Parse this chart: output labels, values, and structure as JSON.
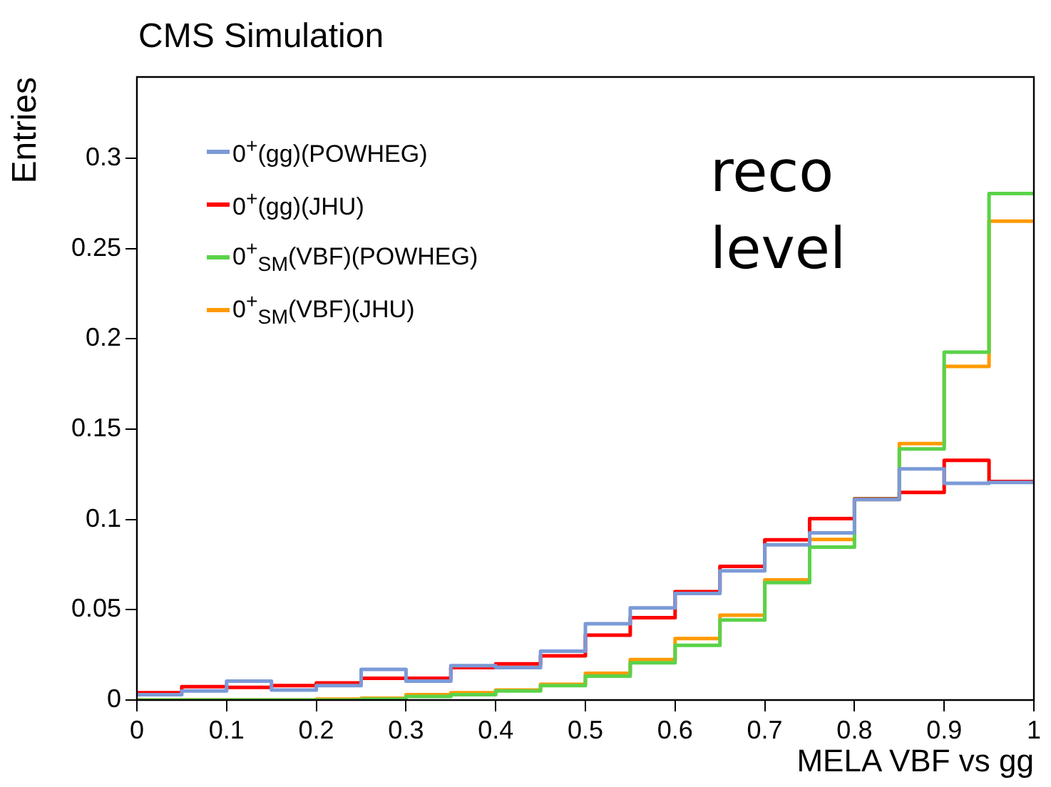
{
  "chart_data": {
    "type": "histogram",
    "title": "CMS Simulation",
    "xlabel": "MELA VBF vs gg",
    "ylabel": "Entries",
    "annotations": [
      "reco level"
    ],
    "bins": [
      0,
      0.05,
      0.1,
      0.15,
      0.2,
      0.25,
      0.3,
      0.35,
      0.4,
      0.45,
      0.5,
      0.55,
      0.6,
      0.65,
      0.7,
      0.75,
      0.8,
      0.85,
      0.9,
      0.95,
      1
    ],
    "series": [
      {
        "name": "0$^{+}$(gg)(POWHEG)",
        "color": "#7b9ad6",
        "values": [
          0.003,
          0.005,
          0.0105,
          0.0055,
          0.008,
          0.017,
          0.0105,
          0.019,
          0.018,
          0.027,
          0.0422,
          0.051,
          0.059,
          0.0715,
          0.086,
          0.0926,
          0.111,
          0.128,
          0.12,
          0.1205
        ]
      },
      {
        "name": "0$^{+}$(gg)(JHU)",
        "color": "#ff0000",
        "values": [
          0.004,
          0.0074,
          0.007,
          0.008,
          0.0095,
          0.012,
          0.012,
          0.018,
          0.02,
          0.0245,
          0.0359,
          0.0456,
          0.06,
          0.074,
          0.0887,
          0.1005,
          0.1113,
          0.115,
          0.1327,
          0.121
        ]
      },
      {
        "name": "0$^{+}$$_{SM}$(VBF)(POWHEG)",
        "color": "#5bd24a",
        "values": [
          0,
          0,
          0,
          0,
          0,
          0.0005,
          0.002,
          0.003,
          0.005,
          0.008,
          0.0132,
          0.0206,
          0.0303,
          0.0443,
          0.065,
          0.0847,
          0.1115,
          0.139,
          0.1926,
          0.2805
        ]
      },
      {
        "name": "0$^{+}$$_{SM}$(VBF)(JHU)",
        "color": "#ff9a00",
        "values": [
          0,
          0,
          0,
          0,
          0.0005,
          0.001,
          0.003,
          0.004,
          0.0055,
          0.0087,
          0.0148,
          0.0224,
          0.034,
          0.047,
          0.0665,
          0.0889,
          0.111,
          0.142,
          0.1847,
          0.2652
        ]
      }
    ],
    "xlim": [
      0,
      1
    ],
    "xticks": [
      0,
      0.1,
      0.2,
      0.3,
      0.4,
      0.5,
      0.6,
      0.7,
      0.8,
      0.9,
      1
    ],
    "ylim": [
      0,
      0.345
    ],
    "yticks": [
      0,
      0.05,
      0.1,
      0.15,
      0.2,
      0.25,
      0.3
    ],
    "legend": "top left",
    "grid": false
  }
}
